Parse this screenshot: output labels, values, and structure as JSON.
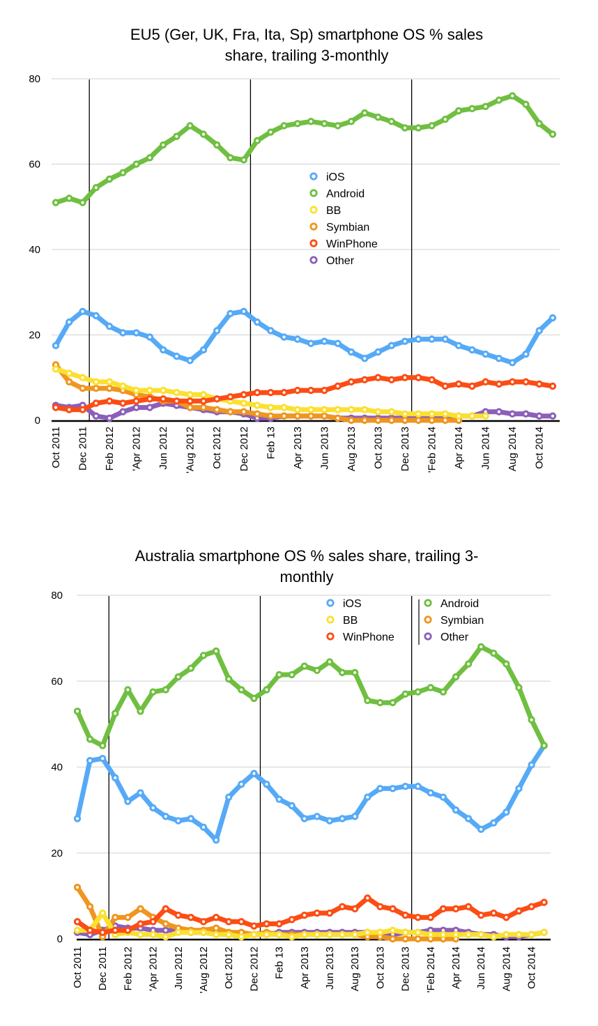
{
  "chart_data": [
    {
      "type": "line",
      "title": "EU5 (Ger, UK, Fra, Ita, Sp) smartphone OS % sales share, trailing 3-monthly",
      "title_lines": [
        "EU5 (Ger, UK, Fra, Ita, Sp) smartphone OS % sales",
        "share, trailing 3-monthly"
      ],
      "xlabel": "",
      "ylabel": "",
      "ylim": [
        0,
        80
      ],
      "yticks": [
        0,
        20,
        40,
        60,
        80
      ],
      "grid": true,
      "legend_position": "center",
      "legend_layout": "single-column",
      "x_tick_labels": [
        "Oct 2011",
        "Dec 2011",
        "Feb 2012",
        "'Apr 2012",
        "Jun 2012",
        "'Aug 2012",
        "Oct 2012",
        "Dec 2012",
        "Feb 13",
        "Apr 2013",
        "Jun 2013",
        "Aug 2013",
        "Oct 2013",
        "Dec 2013",
        "'Feb 2014",
        "Apr 2014",
        "Jun 2014",
        "Aug 2014",
        "Oct 2014"
      ],
      "x_tick_every": 2,
      "vertical_markers_after_index": [
        2.5,
        14.5,
        26.5
      ],
      "n_points": 38,
      "series": [
        {
          "name": "iOS",
          "color": "#55aaf7",
          "values": [
            17.5,
            23,
            25.5,
            24.5,
            22,
            20.5,
            20.5,
            19.5,
            16.5,
            15,
            14,
            16.5,
            21,
            25,
            25.5,
            23,
            21,
            19.5,
            19,
            18,
            18.5,
            18,
            16,
            14.5,
            16,
            17.5,
            18.5,
            19,
            19,
            19,
            17.5,
            16.5,
            15.5,
            14.5,
            13.5,
            15.5,
            21,
            24
          ]
        },
        {
          "name": "Android",
          "color": "#6fbf40",
          "values": [
            51,
            52,
            51,
            54.5,
            56.5,
            58,
            60,
            61.5,
            64.5,
            66.5,
            69,
            67,
            64.5,
            61.5,
            61,
            65.5,
            67.5,
            69,
            69.5,
            70,
            69.5,
            69,
            70,
            72,
            71,
            70,
            68.5,
            68.5,
            69,
            70.5,
            72.5,
            73,
            73.5,
            75,
            76,
            74,
            69.5,
            67
          ]
        },
        {
          "name": "BB",
          "color": "#fbe030",
          "values": [
            12,
            11,
            10,
            9,
            9,
            8,
            7,
            7,
            7,
            6.5,
            6,
            6,
            5,
            4.5,
            4,
            3.5,
            3,
            3,
            2.5,
            2.5,
            2.5,
            2.5,
            2.5,
            2.5,
            2,
            2,
            1.5,
            1.5,
            1.5,
            1.5,
            1,
            1,
            1,
            null,
            null,
            null,
            null,
            null
          ]
        },
        {
          "name": "Symbian",
          "color": "#f0951f",
          "values": [
            13,
            9,
            7.5,
            7.5,
            7.5,
            7,
            6,
            5.5,
            4.5,
            4.5,
            3,
            3,
            2.5,
            2,
            2,
            1.5,
            1,
            1,
            1,
            1,
            1,
            0.5,
            0,
            0,
            0,
            0,
            0,
            0,
            0,
            0,
            0,
            null,
            null,
            null,
            null,
            null,
            null,
            null
          ]
        },
        {
          "name": "WinPhone",
          "color": "#fc4d14",
          "values": [
            3,
            2.5,
            2.5,
            4,
            4.5,
            4,
            4.5,
            5,
            5,
            4.5,
            4.5,
            4.5,
            5,
            5.5,
            6,
            6.5,
            6.5,
            6.5,
            7,
            7,
            7,
            8,
            9,
            9.5,
            10,
            9.5,
            10,
            10,
            9.5,
            8,
            8.5,
            8,
            9,
            8.5,
            9,
            9,
            8.5,
            8
          ]
        },
        {
          "name": "Other",
          "color": "#8c5fba",
          "values": [
            3.5,
            3,
            3.5,
            1,
            0.5,
            2,
            3,
            3,
            4,
            3.5,
            3,
            2.5,
            2,
            2,
            1.5,
            0.5,
            0.5,
            1,
            1,
            1,
            1,
            0.5,
            0.5,
            0.5,
            0.5,
            0.5,
            0.5,
            0.5,
            0.5,
            1,
            1,
            1,
            2,
            2,
            1.5,
            1.5,
            1,
            1
          ]
        }
      ]
    },
    {
      "type": "line",
      "title": "Australia smartphone OS % sales share, trailing 3-monthly",
      "title_lines": [
        "Australia smartphone OS % sales share, trailing 3-",
        "monthly"
      ],
      "xlabel": "",
      "ylabel": "",
      "ylim": [
        0,
        80
      ],
      "yticks": [
        0,
        20,
        40,
        60,
        80
      ],
      "grid": true,
      "legend_position": "top-right",
      "legend_layout": "two-column",
      "x_tick_labels": [
        "Oct 2011",
        "Dec 2011",
        "Feb 2012",
        "'Apr 2012",
        "Jun 2012",
        "'Aug 2012",
        "Oct 2012",
        "Dec 2012",
        "Feb 13",
        "Apr 2013",
        "Jun 2013",
        "Aug 2013",
        "Oct 2013",
        "Dec 2013",
        "'Feb 2014",
        "Apr 2014",
        "Jun 2014",
        "Aug 2014",
        "Oct 2014"
      ],
      "x_tick_every": 2,
      "vertical_markers_after_index": [
        2.5,
        14.5,
        26.5
      ],
      "n_points": 38,
      "series": [
        {
          "name": "iOS",
          "color": "#55aaf7",
          "values": [
            28,
            41.5,
            42,
            37.5,
            32,
            34,
            30.5,
            28.5,
            27.5,
            28,
            26,
            23,
            33,
            36,
            38.5,
            36,
            32.5,
            31,
            28,
            28.5,
            27.5,
            28,
            28.5,
            33,
            35,
            35,
            35.5,
            35.5,
            34,
            33,
            30,
            28,
            25.5,
            27,
            29.5,
            35,
            40.5,
            45
          ]
        },
        {
          "name": "Android",
          "color": "#6fbf40",
          "values": [
            53,
            46.5,
            45,
            52.5,
            58,
            53,
            57.5,
            58,
            61,
            63,
            66,
            67,
            60.5,
            58,
            56,
            58,
            61.5,
            61.5,
            63.5,
            62.5,
            64.5,
            62,
            62,
            55.5,
            55,
            55,
            57,
            57.5,
            58.5,
            57.5,
            61,
            64,
            68,
            66.5,
            64,
            58.5,
            51,
            45
          ]
        },
        {
          "name": "BB",
          "color": "#fbe030",
          "values": [
            2,
            2,
            6,
            1,
            1.5,
            1,
            1,
            0.5,
            1.5,
            1.5,
            1.5,
            1,
            1,
            0.5,
            1,
            1,
            1,
            0.5,
            1,
            1,
            1,
            1,
            1,
            1.5,
            1.5,
            2,
            1.5,
            1.5,
            1,
            1,
            1,
            1,
            1,
            0.5,
            1,
            1,
            1,
            1.5
          ]
        },
        {
          "name": "Symbian",
          "color": "#f0951f",
          "values": [
            12,
            7.5,
            0.5,
            5,
            5,
            7,
            5,
            3.5,
            2.5,
            2,
            2,
            2.5,
            1.5,
            1.5,
            1,
            1.5,
            1,
            1,
            1,
            1,
            1,
            1,
            1,
            0.5,
            0.5,
            0,
            0,
            0,
            0,
            0,
            0,
            null,
            null,
            null,
            null,
            null,
            null,
            null
          ]
        },
        {
          "name": "WinPhone",
          "color": "#fc4d14",
          "values": [
            4,
            2,
            1.5,
            2,
            2,
            3.5,
            4,
            7,
            5.5,
            5,
            4,
            5,
            4,
            4,
            3,
            3.5,
            3.5,
            4.5,
            5.5,
            6,
            6,
            7.5,
            7,
            9.5,
            7.5,
            7,
            5.5,
            5,
            5,
            7,
            7,
            7.5,
            5.5,
            6,
            5,
            6.5,
            7.5,
            8.5
          ]
        },
        {
          "name": "Other",
          "color": "#8c5fba",
          "values": [
            1.5,
            1,
            2,
            3,
            2.5,
            2.5,
            2,
            2,
            2,
            1.5,
            1.5,
            1.5,
            1,
            1,
            1,
            1,
            1.5,
            1.5,
            1.5,
            1.5,
            1.5,
            1.5,
            1.5,
            1.5,
            1,
            1,
            1.5,
            1.5,
            2,
            2,
            2,
            1.5,
            1,
            1,
            0.5,
            0.5,
            1,
            1.5
          ]
        }
      ]
    }
  ]
}
